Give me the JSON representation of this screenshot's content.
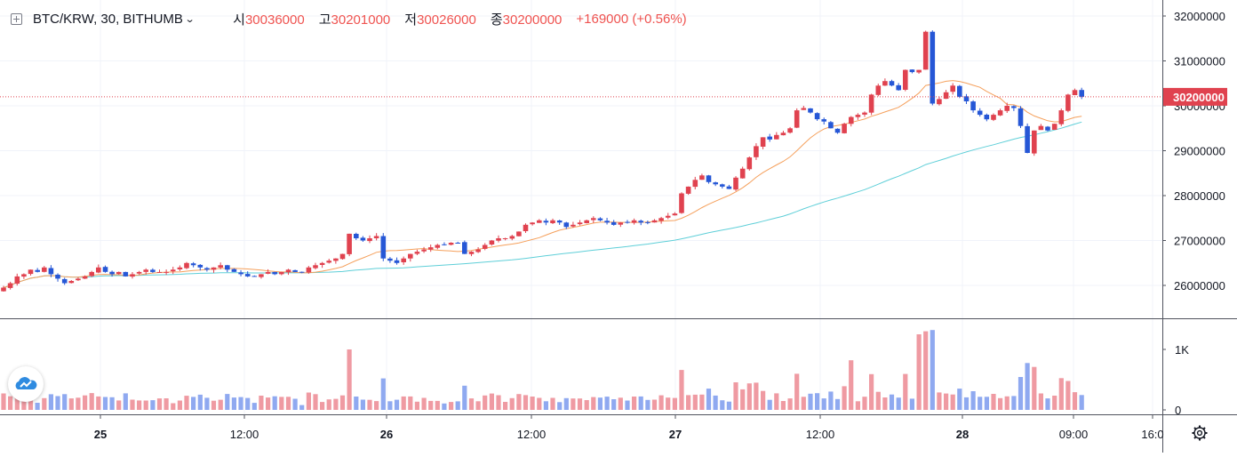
{
  "header": {
    "symbol": "BTC/KRW, 30, BITHUMB",
    "open_label": "시",
    "open_value": "30036000",
    "high_label": "고",
    "high_value": "30201000",
    "low_label": "저",
    "low_value": "30026000",
    "close_label": "종",
    "close_value": "30200000",
    "change": "+169000 (+0.56%)"
  },
  "price_scale": {
    "labels": [
      "32000000",
      "31000000",
      "30000000",
      "29000000",
      "28000000",
      "27000000",
      "26000000"
    ],
    "last_price_label": "30200000"
  },
  "volume_scale": {
    "labels": [
      "1K",
      "0"
    ]
  },
  "time_axis": {
    "labels": [
      "25",
      "12:00",
      "26",
      "12:00",
      "27",
      "12:00",
      "28",
      "09:00",
      "16:0"
    ]
  },
  "icons": [
    "plus-square-icon",
    "chevron-down-icon",
    "tradingview-logo-icon",
    "gear-icon"
  ],
  "colors": {
    "up": "#e0424f",
    "down": "#2657d6",
    "ma_fast": "#f5a05c",
    "ma_slow": "#5fcfd8",
    "last_line": "#e0424f"
  },
  "chart_data": {
    "type": "candlestick",
    "interval": "30",
    "ylim": [
      25500000,
      32300000
    ],
    "last_price": 30200000,
    "xlabels": [
      "25",
      "12:00",
      "26",
      "12:00",
      "27",
      "12:00",
      "28",
      "09:00"
    ],
    "candles_close": [
      25950000,
      26050000,
      26200000,
      26250000,
      26350000,
      26300000,
      26400000,
      26250000,
      26150000,
      26050000,
      26100000,
      26150000,
      26200000,
      26300000,
      26400000,
      26300000,
      26250000,
      26300000,
      26200000,
      26250000,
      26300000,
      26350000,
      26300000,
      26300000,
      26300000,
      26350000,
      26400000,
      26500000,
      26450000,
      26400000,
      26350000,
      26400000,
      26450000,
      26350000,
      26300000,
      26250000,
      26200000,
      26200000,
      26250000,
      26300000,
      26250000,
      26300000,
      26350000,
      26300000,
      26300000,
      26400000,
      26450000,
      26500000,
      26550000,
      26600000,
      26700000,
      27150000,
      27050000,
      27000000,
      27050000,
      27100000,
      26600000,
      26550000,
      26500000,
      26600000,
      26700000,
      26750000,
      26800000,
      26850000,
      26900000,
      26900000,
      26950000,
      26950000,
      26700000,
      26750000,
      26800000,
      26900000,
      27000000,
      27050000,
      27050000,
      27100000,
      27200000,
      27350000,
      27400000,
      27450000,
      27400000,
      27450000,
      27400000,
      27300000,
      27350000,
      27400000,
      27450000,
      27500000,
      27450000,
      27400000,
      27350000,
      27400000,
      27400000,
      27450000,
      27400000,
      27400000,
      27450000,
      27500000,
      27550000,
      27600000,
      28050000,
      28200000,
      28350000,
      28450000,
      28300000,
      28250000,
      28200000,
      28150000,
      28400000,
      28600000,
      28850000,
      29100000,
      29300000,
      29250000,
      29350000,
      29400000,
      29500000,
      29900000,
      29950000,
      29850000,
      29700000,
      29650000,
      29500000,
      29400000,
      29600000,
      29750000,
      29800000,
      29850000,
      30250000,
      30450000,
      30550000,
      30450000,
      30350000,
      30800000,
      30750000,
      30800000,
      31650000,
      30050000,
      30150000,
      30300000,
      30450000,
      30200000,
      30100000,
      29900000,
      29800000,
      29700000,
      29800000,
      29900000,
      30000000,
      29950000,
      29550000,
      28950000,
      29450000,
      29550000,
      29450000,
      29600000,
      29900000,
      30250000,
      30350000,
      30200000
    ]
  }
}
